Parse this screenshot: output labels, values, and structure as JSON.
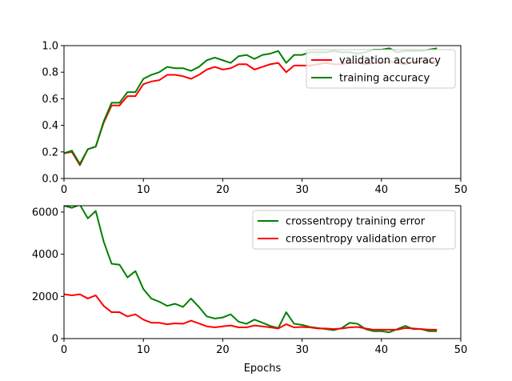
{
  "chart_data": [
    {
      "type": "line",
      "xlabel": "",
      "ylabel": "",
      "xlim": [
        0,
        50
      ],
      "ylim": [
        0,
        1.0
      ],
      "xticks": [
        "0",
        "10",
        "20",
        "30",
        "40",
        "50"
      ],
      "yticks": [
        "0.0",
        "0.2",
        "0.4",
        "0.6",
        "0.8",
        "1.0"
      ],
      "legend_position": "top-right",
      "series": [
        {
          "name": "validation accuracy",
          "color": "#ff0000",
          "x": [
            0,
            1,
            2,
            3,
            4,
            5,
            6,
            7,
            8,
            9,
            10,
            11,
            12,
            13,
            14,
            15,
            16,
            17,
            18,
            19,
            20,
            21,
            22,
            23,
            24,
            25,
            26,
            27,
            28,
            29,
            30,
            31,
            32,
            33,
            34,
            35,
            36,
            37,
            38,
            39,
            40,
            41,
            42,
            43,
            44,
            45,
            46,
            47
          ],
          "y": [
            0.19,
            0.2,
            0.1,
            0.22,
            0.24,
            0.42,
            0.55,
            0.55,
            0.62,
            0.62,
            0.71,
            0.73,
            0.74,
            0.78,
            0.78,
            0.77,
            0.75,
            0.78,
            0.82,
            0.84,
            0.82,
            0.83,
            0.86,
            0.86,
            0.82,
            0.84,
            0.86,
            0.87,
            0.8,
            0.85,
            0.85,
            0.85,
            0.86,
            0.87,
            0.86,
            0.86,
            0.87,
            0.87,
            0.86,
            0.87,
            0.87,
            0.88,
            0.87,
            0.86,
            0.88,
            0.88,
            0.88,
            0.88
          ]
        },
        {
          "name": "training accuracy",
          "color": "#008000",
          "x": [
            0,
            1,
            2,
            3,
            4,
            5,
            6,
            7,
            8,
            9,
            10,
            11,
            12,
            13,
            14,
            15,
            16,
            17,
            18,
            19,
            20,
            21,
            22,
            23,
            24,
            25,
            26,
            27,
            28,
            29,
            30,
            31,
            32,
            33,
            34,
            35,
            36,
            37,
            38,
            39,
            40,
            41,
            42,
            43,
            44,
            45,
            46,
            47
          ],
          "y": [
            0.19,
            0.21,
            0.11,
            0.22,
            0.24,
            0.43,
            0.57,
            0.57,
            0.65,
            0.65,
            0.75,
            0.78,
            0.8,
            0.84,
            0.83,
            0.83,
            0.81,
            0.84,
            0.89,
            0.91,
            0.89,
            0.87,
            0.92,
            0.93,
            0.9,
            0.93,
            0.94,
            0.96,
            0.87,
            0.93,
            0.93,
            0.95,
            0.95,
            0.95,
            0.96,
            0.95,
            0.95,
            0.94,
            0.95,
            0.97,
            0.97,
            0.98,
            0.95,
            0.96,
            0.96,
            0.96,
            0.97,
            0.98
          ]
        }
      ]
    },
    {
      "type": "line",
      "xlabel": "Epochs",
      "ylabel": "",
      "xlim": [
        0,
        50
      ],
      "ylim": [
        0,
        6300
      ],
      "xticks": [
        "0",
        "10",
        "20",
        "30",
        "40",
        "50"
      ],
      "yticks": [
        "0",
        "2000",
        "4000",
        "6000"
      ],
      "legend_position": "top-right",
      "series": [
        {
          "name": "crossentropy training error",
          "color": "#008000",
          "x": [
            0,
            1,
            2,
            3,
            4,
            5,
            6,
            7,
            8,
            9,
            10,
            11,
            12,
            13,
            14,
            15,
            16,
            17,
            18,
            19,
            20,
            21,
            22,
            23,
            24,
            25,
            26,
            27,
            28,
            29,
            30,
            31,
            32,
            33,
            34,
            35,
            36,
            37,
            38,
            39,
            40,
            41,
            42,
            43,
            44,
            45,
            46,
            47
          ],
          "y": [
            6300,
            6200,
            6350,
            5700,
            6050,
            4600,
            3550,
            3500,
            2900,
            3200,
            2350,
            1900,
            1750,
            1550,
            1650,
            1500,
            1900,
            1500,
            1050,
            950,
            1000,
            1150,
            800,
            700,
            900,
            750,
            600,
            500,
            1250,
            700,
            650,
            550,
            500,
            450,
            400,
            500,
            750,
            700,
            450,
            350,
            350,
            300,
            450,
            600,
            450,
            450,
            350,
            350
          ]
        },
        {
          "name": "crossentropy validation error",
          "color": "#ff0000",
          "x": [
            0,
            1,
            2,
            3,
            4,
            5,
            6,
            7,
            8,
            9,
            10,
            11,
            12,
            13,
            14,
            15,
            16,
            17,
            18,
            19,
            20,
            21,
            22,
            23,
            24,
            25,
            26,
            27,
            28,
            29,
            30,
            31,
            32,
            33,
            34,
            35,
            36,
            37,
            38,
            39,
            40,
            41,
            42,
            43,
            44,
            45,
            46,
            47
          ],
          "y": [
            2100,
            2050,
            2100,
            1900,
            2050,
            1550,
            1250,
            1250,
            1050,
            1150,
            900,
            750,
            750,
            680,
            720,
            700,
            850,
            720,
            580,
            530,
            580,
            620,
            530,
            530,
            620,
            580,
            530,
            480,
            680,
            530,
            550,
            530,
            480,
            480,
            450,
            480,
            530,
            550,
            480,
            420,
            420,
            420,
            420,
            500,
            480,
            450,
            420,
            420
          ]
        }
      ]
    }
  ]
}
